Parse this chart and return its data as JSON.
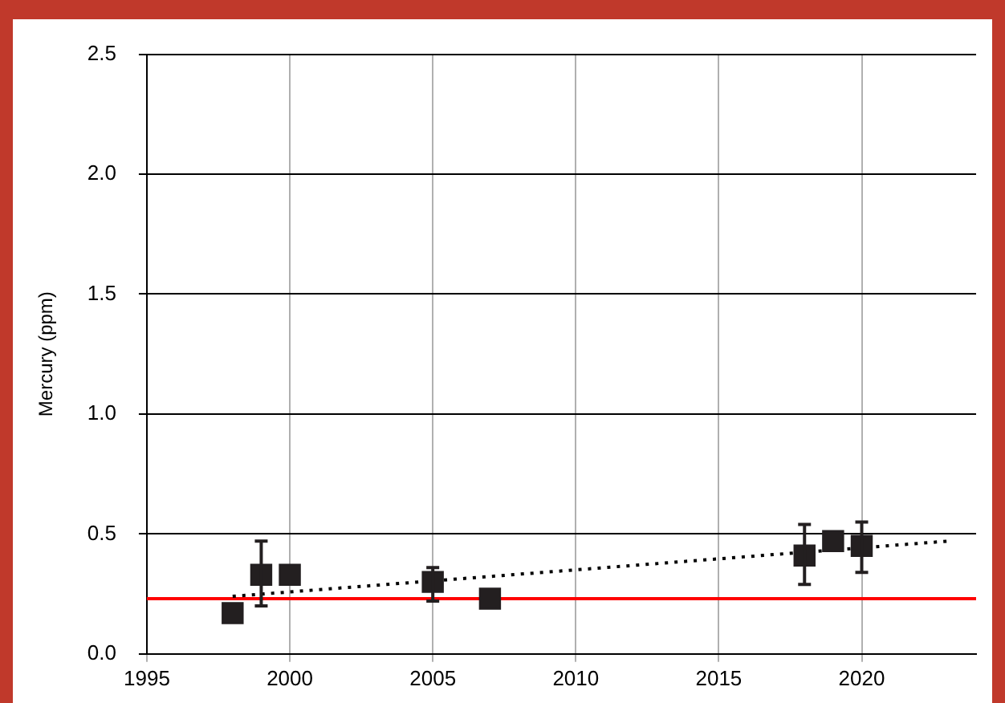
{
  "chart_data": {
    "type": "scatter",
    "ylabel": "Mercury (ppm)",
    "xlim": [
      1995,
      2024
    ],
    "xticks": [
      1995,
      2000,
      2005,
      2010,
      2015,
      2020
    ],
    "ylim": [
      0,
      2.5
    ],
    "yticks": [
      {
        "value": 0,
        "label": "0.0"
      },
      {
        "value": 0.5,
        "label": "0.5"
      },
      {
        "value": 1,
        "label": "1.0"
      },
      {
        "value": 1.5,
        "label": "1.5"
      },
      {
        "value": 2,
        "label": "2.0"
      },
      {
        "value": 2.5,
        "label": "2.5"
      }
    ],
    "grid": true,
    "legend": false,
    "series": [
      {
        "color": "#231f20",
        "marker": "square",
        "x": [
          1998,
          1999,
          2000,
          2005,
          2007,
          2018,
          2019,
          2020
        ],
        "values": [
          0.17,
          0.33,
          0.33,
          0.3,
          0.23,
          0.41,
          0.47,
          0.45
        ],
        "errors": [
          null,
          [
            0.2,
            0.47
          ],
          null,
          [
            0.22,
            0.36
          ],
          null,
          [
            0.29,
            0.54
          ],
          null,
          [
            0.34,
            0.55
          ]
        ]
      },
      {
        "type": "line",
        "color": "#000000",
        "marker": "none",
        "line_style": "dotted",
        "x": [
          1998,
          2023
        ],
        "values": [
          0.24,
          0.47
        ]
      }
    ],
    "ref_lines": [
      {
        "axis": "y",
        "value": 0.23,
        "color": "#ff0000"
      }
    ]
  }
}
